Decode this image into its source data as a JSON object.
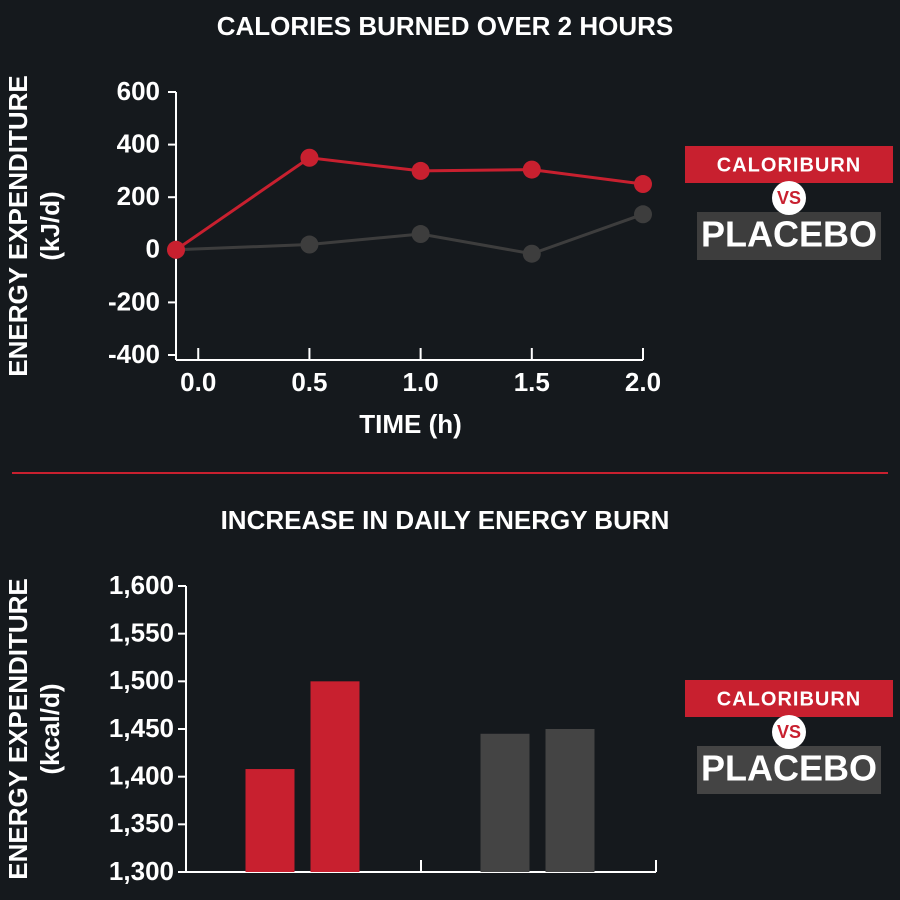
{
  "chart_data": [
    {
      "type": "line",
      "title": "CALORIES BURNED OVER 2 HOURS",
      "x_label": "TIME (h)",
      "y_label": [
        "ENERGY EXPENDITURE",
        "(kJ/d)"
      ],
      "x": [
        -0.1,
        0.5,
        1,
        1.5,
        2
      ],
      "xlim": [
        -0.1,
        2
      ],
      "xticks": [
        {
          "value": 0,
          "label": "0.0"
        },
        0.5,
        {
          "value": 1,
          "label": "1.0"
        },
        1.5,
        {
          "value": 2,
          "label": "2.0"
        }
      ],
      "ylim": [
        -400,
        600
      ],
      "yticks": [
        -400,
        -200,
        0,
        200,
        400,
        600
      ],
      "series": [
        {
          "name": "CALORIBURN",
          "color": "#c8202f",
          "values": [
            0,
            350,
            300,
            305,
            250
          ]
        },
        {
          "name": "PLACEBO",
          "color": "#3d3d3d",
          "values": [
            0,
            20,
            60,
            -15,
            135
          ]
        }
      ],
      "legend_separator": "VS"
    },
    {
      "type": "bar",
      "title": "INCREASE IN DAILY ENERGY BURN",
      "y_label": [
        "ENERGY EXPENDITURE",
        "(kcal/d)"
      ],
      "ylim": [
        1300,
        1600
      ],
      "yticks": [
        {
          "value": 1300,
          "label": "1,300"
        },
        {
          "value": 1350,
          "label": "1,350"
        },
        {
          "value": 1400,
          "label": "1,400"
        },
        {
          "value": 1450,
          "label": "1,450"
        },
        {
          "value": 1500,
          "label": "1,500"
        },
        {
          "value": 1550,
          "label": "1,550"
        },
        {
          "value": 1600,
          "label": "1,600"
        }
      ],
      "series": [
        {
          "name": "CALORIBURN",
          "color": "#c8202f",
          "values": [
            1408,
            1500
          ]
        },
        {
          "name": "PLACEBO",
          "color": "#444444",
          "values": [
            1445,
            1450
          ]
        }
      ],
      "legend_separator": "VS"
    }
  ]
}
